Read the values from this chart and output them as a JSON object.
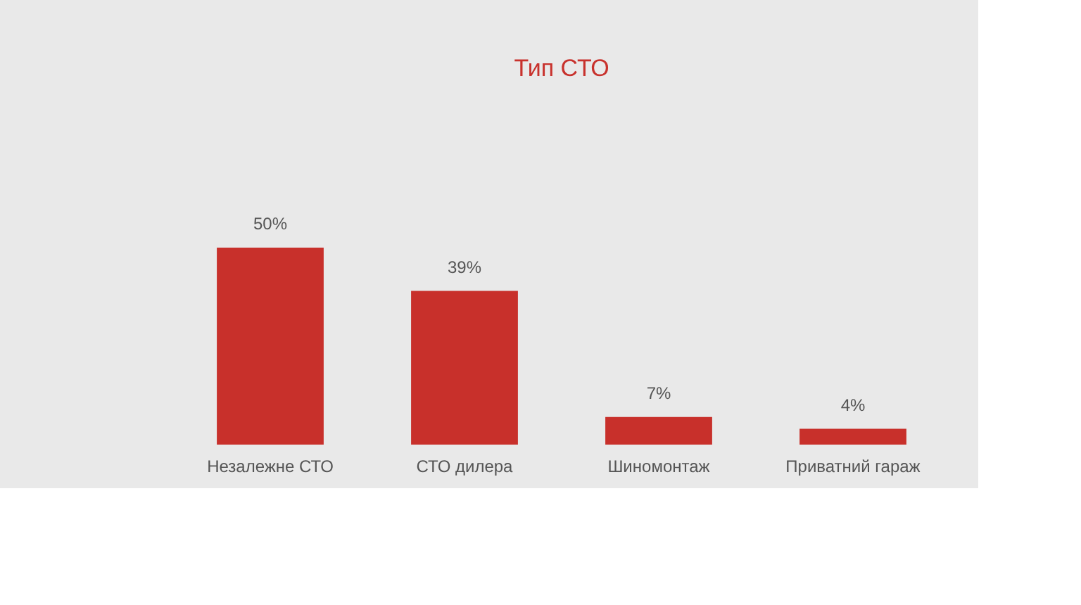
{
  "chart_data": {
    "type": "bar",
    "title": "Тип СТО",
    "categories": [
      "Незалежне СТО",
      "СТО дилера",
      "Шиномонтаж",
      "Приватний гараж"
    ],
    "values": [
      50,
      39,
      7,
      4
    ],
    "value_labels": [
      "50%",
      "39%",
      "7%",
      "4%"
    ],
    "color": "#c8302b"
  }
}
